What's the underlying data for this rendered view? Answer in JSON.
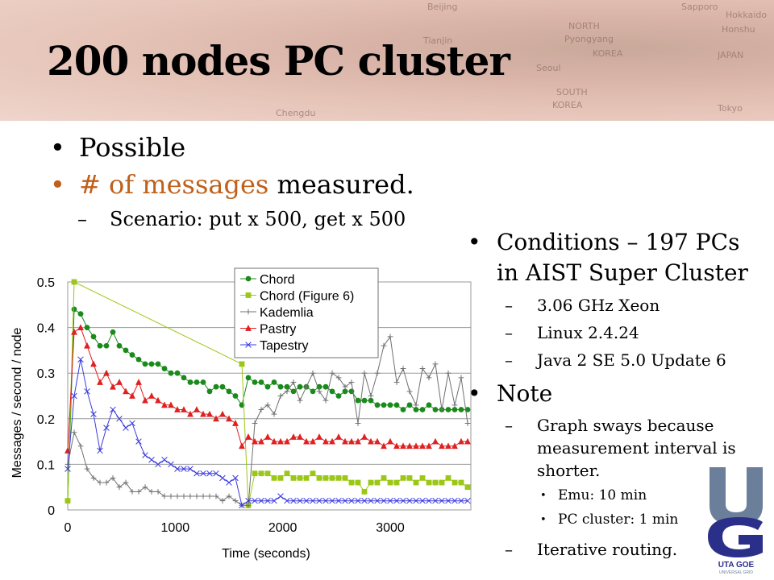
{
  "slide": {
    "title": "200 nodes PC cluster",
    "map_labels": [
      "Beijing",
      "NORTH",
      "Pyongyang",
      "KOREA",
      "Seoul",
      "SOUTH",
      "KOREA",
      "JAPAN",
      "Tokyo",
      "Sapporo",
      "Hokkaido",
      "Honshu",
      "Tianjin",
      "Chengdu"
    ],
    "left_bullets": [
      {
        "text": "Possible"
      },
      {
        "highlight": "# of messages",
        "text": " measured."
      }
    ],
    "left_sub": "Scenario: put x 500, get x 500",
    "right": {
      "bullet1": "Conditions – 197 PCs in AIST Super Cluster",
      "conditions": [
        "3.06 GHz Xeon",
        "Linux 2.4.24",
        "Java 2 SE 5.0 Update 6"
      ],
      "bullet2": "Note",
      "note_sub1": "Graph sways because measurement interval is shorter.",
      "note_items": [
        "Emu: 10 min",
        "PC cluster: 1 min"
      ],
      "note_sub2": "Iterative routing."
    },
    "logo": {
      "text": "UTA GOE",
      "subtext": "UNIVERSAL GRID",
      "colors": {
        "u": "#6b7f9a",
        "g": "#2a2f8a"
      }
    }
  },
  "chart_data": {
    "type": "line",
    "xlabel": "Time (seconds)",
    "ylabel": "Messages / second / node",
    "xlim": [
      0,
      3750
    ],
    "ylim": [
      0,
      0.5
    ],
    "xticks": [
      0,
      1000,
      2000,
      3000
    ],
    "yticks": [
      0,
      0.1,
      0.2,
      0.3,
      0.4,
      0.5
    ],
    "grid": "horizontal",
    "legend": "top-center",
    "series": [
      {
        "name": "Chord",
        "color": "#1a8a1a",
        "marker": "circle",
        "x": [
          0,
          60,
          120,
          180,
          240,
          300,
          360,
          420,
          480,
          540,
          600,
          660,
          720,
          780,
          840,
          900,
          960,
          1020,
          1080,
          1140,
          1200,
          1260,
          1320,
          1380,
          1440,
          1500,
          1560,
          1620,
          1680,
          1740,
          1800,
          1860,
          1920,
          1980,
          2040,
          2100,
          2160,
          2220,
          2280,
          2340,
          2400,
          2460,
          2520,
          2580,
          2640,
          2700,
          2760,
          2820,
          2880,
          2940,
          3000,
          3060,
          3120,
          3180,
          3240,
          3300,
          3360,
          3420,
          3480,
          3540,
          3600,
          3660,
          3720
        ],
        "y": [
          0.02,
          0.44,
          0.43,
          0.4,
          0.38,
          0.36,
          0.36,
          0.39,
          0.36,
          0.35,
          0.34,
          0.33,
          0.32,
          0.32,
          0.32,
          0.31,
          0.3,
          0.3,
          0.29,
          0.28,
          0.28,
          0.28,
          0.26,
          0.27,
          0.27,
          0.26,
          0.25,
          0.23,
          0.29,
          0.28,
          0.28,
          0.27,
          0.28,
          0.27,
          0.27,
          0.26,
          0.27,
          0.27,
          0.26,
          0.27,
          0.27,
          0.26,
          0.25,
          0.26,
          0.26,
          0.24,
          0.24,
          0.24,
          0.23,
          0.23,
          0.23,
          0.23,
          0.22,
          0.23,
          0.22,
          0.22,
          0.23,
          0.22,
          0.22,
          0.22,
          0.22,
          0.22,
          0.22
        ]
      },
      {
        "name": "Chord (Figure 6)",
        "color": "#9bc816",
        "marker": "square",
        "x": [
          0,
          60,
          1620,
          1680,
          1740,
          1800,
          1860,
          1920,
          1980,
          2040,
          2100,
          2160,
          2220,
          2280,
          2340,
          2400,
          2460,
          2520,
          2580,
          2640,
          2700,
          2760,
          2820,
          2880,
          2940,
          3000,
          3060,
          3120,
          3180,
          3240,
          3300,
          3360,
          3420,
          3480,
          3540,
          3600,
          3660,
          3720
        ],
        "y": [
          0.02,
          0.5,
          0.32,
          0.01,
          0.08,
          0.08,
          0.08,
          0.07,
          0.07,
          0.08,
          0.07,
          0.07,
          0.07,
          0.08,
          0.07,
          0.07,
          0.07,
          0.07,
          0.07,
          0.06,
          0.06,
          0.04,
          0.06,
          0.06,
          0.07,
          0.06,
          0.06,
          0.07,
          0.07,
          0.06,
          0.07,
          0.06,
          0.06,
          0.06,
          0.07,
          0.06,
          0.06,
          0.05
        ]
      },
      {
        "name": "Kademlia",
        "color": "#707070",
        "marker": "plus",
        "x": [
          0,
          60,
          120,
          180,
          240,
          300,
          360,
          420,
          480,
          540,
          600,
          660,
          720,
          780,
          840,
          900,
          960,
          1020,
          1080,
          1140,
          1200,
          1260,
          1320,
          1380,
          1440,
          1500,
          1560,
          1620,
          1680,
          1740,
          1800,
          1860,
          1920,
          1980,
          2040,
          2100,
          2160,
          2220,
          2280,
          2340,
          2400,
          2460,
          2520,
          2580,
          2640,
          2700,
          2760,
          2820,
          2880,
          2940,
          3000,
          3060,
          3120,
          3180,
          3240,
          3300,
          3360,
          3420,
          3480,
          3540,
          3600,
          3660,
          3720
        ],
        "y": [
          0.1,
          0.17,
          0.14,
          0.09,
          0.07,
          0.06,
          0.06,
          0.07,
          0.05,
          0.06,
          0.04,
          0.04,
          0.05,
          0.04,
          0.04,
          0.03,
          0.03,
          0.03,
          0.03,
          0.03,
          0.03,
          0.03,
          0.03,
          0.03,
          0.02,
          0.03,
          0.02,
          0.01,
          0.01,
          0.19,
          0.22,
          0.23,
          0.21,
          0.25,
          0.26,
          0.28,
          0.24,
          0.27,
          0.3,
          0.26,
          0.24,
          0.3,
          0.29,
          0.27,
          0.28,
          0.19,
          0.3,
          0.25,
          0.3,
          0.36,
          0.38,
          0.28,
          0.31,
          0.26,
          0.23,
          0.31,
          0.29,
          0.32,
          0.22,
          0.3,
          0.23,
          0.29,
          0.19
        ]
      },
      {
        "name": "Pastry",
        "color": "#e02020",
        "marker": "triangle",
        "x": [
          0,
          60,
          120,
          180,
          240,
          300,
          360,
          420,
          480,
          540,
          600,
          660,
          720,
          780,
          840,
          900,
          960,
          1020,
          1080,
          1140,
          1200,
          1260,
          1320,
          1380,
          1440,
          1500,
          1560,
          1620,
          1680,
          1740,
          1800,
          1860,
          1920,
          1980,
          2040,
          2100,
          2160,
          2220,
          2280,
          2340,
          2400,
          2460,
          2520,
          2580,
          2640,
          2700,
          2760,
          2820,
          2880,
          2940,
          3000,
          3060,
          3120,
          3180,
          3240,
          3300,
          3360,
          3420,
          3480,
          3540,
          3600,
          3660,
          3720
        ],
        "y": [
          0.13,
          0.39,
          0.4,
          0.36,
          0.32,
          0.28,
          0.3,
          0.27,
          0.28,
          0.26,
          0.25,
          0.28,
          0.24,
          0.25,
          0.24,
          0.23,
          0.23,
          0.22,
          0.22,
          0.21,
          0.22,
          0.21,
          0.21,
          0.2,
          0.21,
          0.2,
          0.19,
          0.14,
          0.16,
          0.15,
          0.15,
          0.16,
          0.15,
          0.15,
          0.15,
          0.16,
          0.16,
          0.15,
          0.15,
          0.16,
          0.15,
          0.15,
          0.16,
          0.15,
          0.15,
          0.15,
          0.16,
          0.15,
          0.15,
          0.14,
          0.15,
          0.14,
          0.14,
          0.14,
          0.14,
          0.14,
          0.14,
          0.15,
          0.14,
          0.14,
          0.14,
          0.15,
          0.15
        ]
      },
      {
        "name": "Tapestry",
        "color": "#3a3ae0",
        "marker": "x",
        "x": [
          0,
          60,
          120,
          180,
          240,
          300,
          360,
          420,
          480,
          540,
          600,
          660,
          720,
          780,
          840,
          900,
          960,
          1020,
          1080,
          1140,
          1200,
          1260,
          1320,
          1380,
          1440,
          1500,
          1560,
          1620,
          1680,
          1740,
          1800,
          1860,
          1920,
          1980,
          2040,
          2100,
          2160,
          2220,
          2280,
          2340,
          2400,
          2460,
          2520,
          2580,
          2640,
          2700,
          2760,
          2820,
          2880,
          2940,
          3000,
          3060,
          3120,
          3180,
          3240,
          3300,
          3360,
          3420,
          3480,
          3540,
          3600,
          3660,
          3720
        ],
        "y": [
          0.09,
          0.25,
          0.33,
          0.26,
          0.21,
          0.13,
          0.18,
          0.22,
          0.2,
          0.18,
          0.19,
          0.15,
          0.12,
          0.11,
          0.1,
          0.11,
          0.1,
          0.09,
          0.09,
          0.09,
          0.08,
          0.08,
          0.08,
          0.08,
          0.07,
          0.06,
          0.07,
          0.01,
          0.02,
          0.02,
          0.02,
          0.02,
          0.02,
          0.03,
          0.02,
          0.02,
          0.02,
          0.02,
          0.02,
          0.02,
          0.02,
          0.02,
          0.02,
          0.02,
          0.02,
          0.02,
          0.02,
          0.02,
          0.02,
          0.02,
          0.02,
          0.02,
          0.02,
          0.02,
          0.02,
          0.02,
          0.02,
          0.02,
          0.02,
          0.02,
          0.02,
          0.02,
          0.02
        ]
      }
    ]
  }
}
